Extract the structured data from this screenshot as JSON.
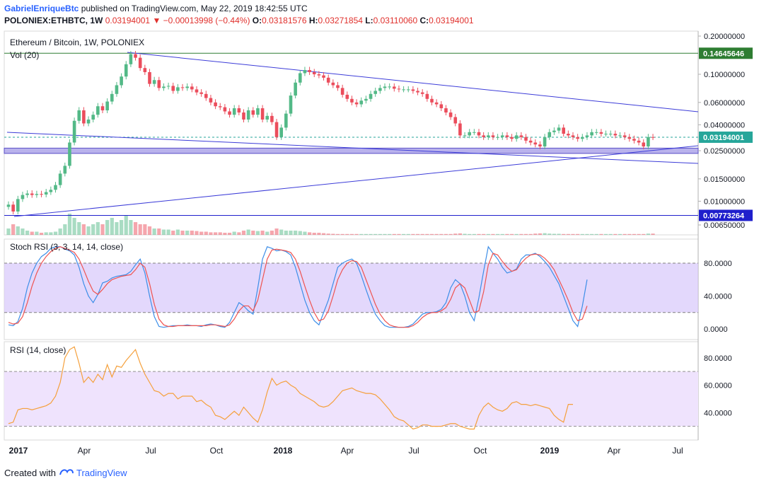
{
  "header": {
    "author": "GabrielEnriqueBtc",
    "published": "published on TradingView.com, May 22, 2019 18:42:55 UTC",
    "symbol": "POLONIEX:ETHBTC, 1W",
    "last": "0.03194001",
    "change_arrow": "▼",
    "change": "−0.00013998 (−0.44%)",
    "o_label": "O:",
    "o": "0.03181576",
    "h_label": "H:",
    "h": "0.03271854",
    "l_label": "L:",
    "l": "0.03110060",
    "c_label": "C:",
    "c": "0.03194001"
  },
  "footer": {
    "created_with": "Created with",
    "brand": "TradingView"
  },
  "colors": {
    "up": "#53b987",
    "down": "#eb4d5c",
    "trend": "#3c3cd8",
    "stoch_k": "#3d8ee8",
    "stoch_d": "#ef5350",
    "rsi": "#f5a03c",
    "band": "#d7c7fb",
    "h_green": "#2e7d32",
    "h_blue": "#1f1fcc"
  },
  "chart_data": [
    {
      "type": "candlestick",
      "title": "Ethereum / Bitcoin, 1W, POLONIEX",
      "subtitle": "Vol (20)",
      "y_scale": "log",
      "y_ticks": [
        "0.20000000",
        "0.10000000",
        "0.06000000",
        "0.04000000",
        "0.02500000",
        "0.01500000",
        "0.01000000",
        "0.00650000"
      ],
      "x_ticks": [
        "2017",
        "Apr",
        "Jul",
        "Oct",
        "2018",
        "Apr",
        "Jul",
        "Oct",
        "2019",
        "Apr",
        "Jul"
      ],
      "price_labels": [
        {
          "value": "0.14645646",
          "color": "green"
        },
        {
          "value": "0.03194001",
          "color": "teal"
        },
        {
          "value": "0.00773264",
          "color": "blue"
        }
      ],
      "horizontal_levels": [
        0.14645646,
        0.00773264
      ],
      "last_price": 0.03194001,
      "closes": [
        0.0094,
        0.0083,
        0.0104,
        0.0112,
        0.0115,
        0.0112,
        0.0114,
        0.0113,
        0.0118,
        0.0123,
        0.0134,
        0.0165,
        0.019,
        0.029,
        0.043,
        0.052,
        0.041,
        0.044,
        0.048,
        0.056,
        0.052,
        0.061,
        0.07,
        0.082,
        0.096,
        0.12,
        0.144,
        0.135,
        0.112,
        0.104,
        0.084,
        0.09,
        0.078,
        0.08,
        0.081,
        0.074,
        0.079,
        0.078,
        0.08,
        0.076,
        0.072,
        0.07,
        0.065,
        0.06,
        0.056,
        0.055,
        0.051,
        0.048,
        0.054,
        0.05,
        0.044,
        0.052,
        0.048,
        0.054,
        0.044,
        0.047,
        0.042,
        0.032,
        0.038,
        0.049,
        0.068,
        0.086,
        0.102,
        0.108,
        0.104,
        0.1,
        0.098,
        0.094,
        0.086,
        0.082,
        0.078,
        0.069,
        0.064,
        0.06,
        0.058,
        0.062,
        0.064,
        0.07,
        0.074,
        0.078,
        0.08,
        0.08,
        0.077,
        0.076,
        0.076,
        0.076,
        0.074,
        0.072,
        0.07,
        0.064,
        0.06,
        0.058,
        0.054,
        0.05,
        0.046,
        0.041,
        0.033,
        0.033,
        0.035,
        0.035,
        0.033,
        0.032,
        0.033,
        0.032,
        0.032,
        0.033,
        0.032,
        0.031,
        0.033,
        0.032,
        0.03,
        0.029,
        0.028,
        0.027,
        0.032,
        0.035,
        0.036,
        0.038,
        0.034,
        0.033,
        0.032,
        0.031,
        0.032,
        0.033,
        0.035,
        0.035,
        0.034,
        0.034,
        0.034,
        0.033,
        0.033,
        0.032,
        0.031,
        0.03,
        0.029,
        0.027,
        0.032,
        0.0319
      ],
      "volume_rel": [
        0.3,
        0.5,
        0.4,
        0.3,
        0.2,
        0.15,
        0.15,
        0.1,
        0.12,
        0.12,
        0.15,
        0.3,
        0.5,
        1.0,
        0.8,
        0.6,
        0.5,
        0.4,
        0.5,
        0.6,
        0.5,
        0.7,
        0.8,
        0.6,
        0.7,
        0.9,
        0.7,
        0.6,
        0.5,
        0.5,
        0.4,
        0.3,
        0.3,
        0.25,
        0.25,
        0.2,
        0.25,
        0.2,
        0.2,
        0.2,
        0.18,
        0.15,
        0.15,
        0.12,
        0.12,
        0.12,
        0.1,
        0.1,
        0.15,
        0.12,
        0.2,
        0.25,
        0.2,
        0.18,
        0.2,
        0.15,
        0.2,
        0.3,
        0.25,
        0.2,
        0.2,
        0.2,
        0.18,
        0.15,
        0.12,
        0.1,
        0.1,
        0.08,
        0.06,
        0.05,
        0.04,
        0.04,
        0.04,
        0.04,
        0.04,
        0.04,
        0.04,
        0.04,
        0.04,
        0.04,
        0.04,
        0.04,
        0.04,
        0.04,
        0.04,
        0.04,
        0.04,
        0.04,
        0.04,
        0.04,
        0.04,
        0.04,
        0.04,
        0.04,
        0.04,
        0.06,
        0.07,
        0.05,
        0.04,
        0.04,
        0.04,
        0.04,
        0.04,
        0.04,
        0.04,
        0.04,
        0.04,
        0.04,
        0.04,
        0.04,
        0.04,
        0.04,
        0.06,
        0.07,
        0.08,
        0.06,
        0.05,
        0.05,
        0.04,
        0.04,
        0.04,
        0.04,
        0.04,
        0.04,
        0.04,
        0.04,
        0.04,
        0.04,
        0.04,
        0.04,
        0.04,
        0.04,
        0.04,
        0.04,
        0.04,
        0.04,
        0.06,
        0.06
      ]
    },
    {
      "type": "line",
      "title": "Stoch RSI (3, 3, 14, 14, close)",
      "y_ticks": [
        "80.0000",
        "40.0000",
        "0.0000"
      ],
      "band": [
        20,
        80
      ],
      "series": [
        {
          "values": [
            5,
            4,
            9,
            25,
            50,
            68,
            80,
            88,
            92,
            98,
            100,
            100,
            97,
            95,
            90,
            75,
            55,
            40,
            32,
            42,
            56,
            58,
            62,
            64,
            65,
            66,
            70,
            78,
            85,
            68,
            40,
            15,
            3,
            2,
            3,
            4,
            4,
            4,
            5,
            4,
            4,
            3,
            5,
            6,
            5,
            3,
            2,
            8,
            20,
            32,
            28,
            22,
            18,
            50,
            85,
            100,
            98,
            95,
            96,
            94,
            90,
            75,
            55,
            35,
            20,
            10,
            5,
            20,
            35,
            55,
            75,
            80,
            83,
            85,
            80,
            65,
            48,
            32,
            18,
            10,
            4,
            2,
            2,
            2,
            2,
            3,
            6,
            12,
            18,
            20,
            20,
            21,
            24,
            32,
            50,
            60,
            55,
            40,
            20,
            10,
            38,
            70,
            100,
            92,
            85,
            75,
            68,
            70,
            73,
            85,
            90,
            90,
            92,
            88,
            82,
            75,
            65,
            55,
            40,
            25,
            10,
            3,
            28,
            60
          ]
        },
        {
          "values": [
            8,
            6,
            7,
            15,
            32,
            52,
            68,
            80,
            88,
            94,
            98,
            100,
            98,
            96,
            93,
            85,
            72,
            58,
            46,
            42,
            48,
            55,
            60,
            62,
            64,
            65,
            66,
            72,
            80,
            75,
            55,
            30,
            12,
            5,
            3,
            3,
            4,
            4,
            4,
            4,
            4,
            4,
            4,
            5,
            5,
            4,
            3,
            5,
            12,
            22,
            28,
            28,
            22,
            35,
            60,
            85,
            96,
            97,
            96,
            95,
            93,
            85,
            70,
            52,
            35,
            20,
            10,
            12,
            22,
            40,
            60,
            72,
            80,
            83,
            82,
            75,
            60,
            45,
            30,
            18,
            10,
            5,
            3,
            2,
            2,
            2,
            4,
            8,
            14,
            18,
            20,
            20,
            22,
            26,
            36,
            50,
            55,
            50,
            35,
            20,
            22,
            45,
            78,
            92,
            90,
            82,
            75,
            70,
            72,
            80,
            86,
            90,
            91,
            90,
            86,
            80,
            72,
            60,
            48,
            35,
            20,
            10,
            12,
            28
          ]
        }
      ]
    },
    {
      "type": "line",
      "title": "RSI (14, close)",
      "y_ticks": [
        "80.0000",
        "60.0000",
        "40.0000"
      ],
      "band": [
        30,
        70
      ],
      "series": [
        {
          "values": [
            32,
            33,
            42,
            43,
            43,
            42,
            43,
            44,
            45,
            47,
            52,
            62,
            80,
            86,
            88,
            76,
            62,
            66,
            62,
            68,
            64,
            75,
            66,
            74,
            73,
            78,
            82,
            86,
            76,
            68,
            62,
            56,
            55,
            52,
            54,
            54,
            50,
            52,
            52,
            52,
            48,
            49,
            46,
            44,
            38,
            37,
            35,
            38,
            41,
            38,
            44,
            40,
            36,
            33,
            42,
            55,
            65,
            60,
            62,
            63,
            60,
            58,
            54,
            52,
            50,
            48,
            45,
            44,
            45,
            48,
            52,
            56,
            57,
            58,
            56,
            55,
            54,
            54,
            53,
            50,
            46,
            42,
            37,
            35,
            34,
            31,
            28,
            29,
            31,
            31,
            30,
            30,
            30,
            31,
            32,
            32,
            30,
            29,
            28,
            28,
            38,
            44,
            47,
            44,
            42,
            41,
            43,
            47,
            48,
            46,
            46,
            45,
            46,
            45,
            44,
            43,
            38,
            35,
            33,
            46,
            46
          ]
        }
      ]
    }
  ]
}
